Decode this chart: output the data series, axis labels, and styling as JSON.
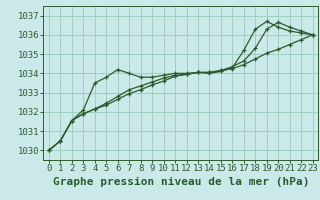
{
  "title": "Graphe pression niveau de la mer (hPa)",
  "background_color": "#cce9e9",
  "grid_color": "#9ecfbf",
  "line_color": "#2d5a2d",
  "xlim": [
    -0.5,
    23.5
  ],
  "ylim": [
    1029.5,
    1037.5
  ],
  "yticks": [
    1030,
    1031,
    1032,
    1033,
    1034,
    1035,
    1036,
    1037
  ],
  "xticks": [
    0,
    1,
    2,
    3,
    4,
    5,
    6,
    7,
    8,
    9,
    10,
    11,
    12,
    13,
    14,
    15,
    16,
    17,
    18,
    19,
    20,
    21,
    22,
    23
  ],
  "series": [
    [
      1030.0,
      1030.5,
      1031.55,
      1032.1,
      1033.5,
      1033.8,
      1034.2,
      1034.0,
      1033.8,
      1033.8,
      1033.9,
      1034.0,
      1034.0,
      1034.05,
      1034.0,
      1034.1,
      1034.3,
      1035.2,
      1036.3,
      1036.7,
      1036.4,
      1036.2,
      1036.1,
      1036.0
    ],
    [
      1030.0,
      1030.5,
      1031.55,
      1031.9,
      1032.15,
      1032.35,
      1032.65,
      1032.95,
      1033.15,
      1033.4,
      1033.6,
      1033.85,
      1033.95,
      1034.05,
      1034.05,
      1034.15,
      1034.25,
      1034.45,
      1034.75,
      1035.05,
      1035.25,
      1035.5,
      1035.75,
      1036.0
    ],
    [
      1030.0,
      1030.5,
      1031.55,
      1031.9,
      1032.15,
      1032.45,
      1032.8,
      1033.15,
      1033.35,
      1033.55,
      1033.75,
      1033.9,
      1033.95,
      1034.05,
      1034.05,
      1034.15,
      1034.35,
      1034.65,
      1035.3,
      1036.3,
      1036.65,
      1036.4,
      1036.2,
      1036.0
    ]
  ],
  "title_fontsize": 8,
  "tick_fontsize": 6.5,
  "marker": "+",
  "markersize": 3,
  "linewidth": 0.9
}
